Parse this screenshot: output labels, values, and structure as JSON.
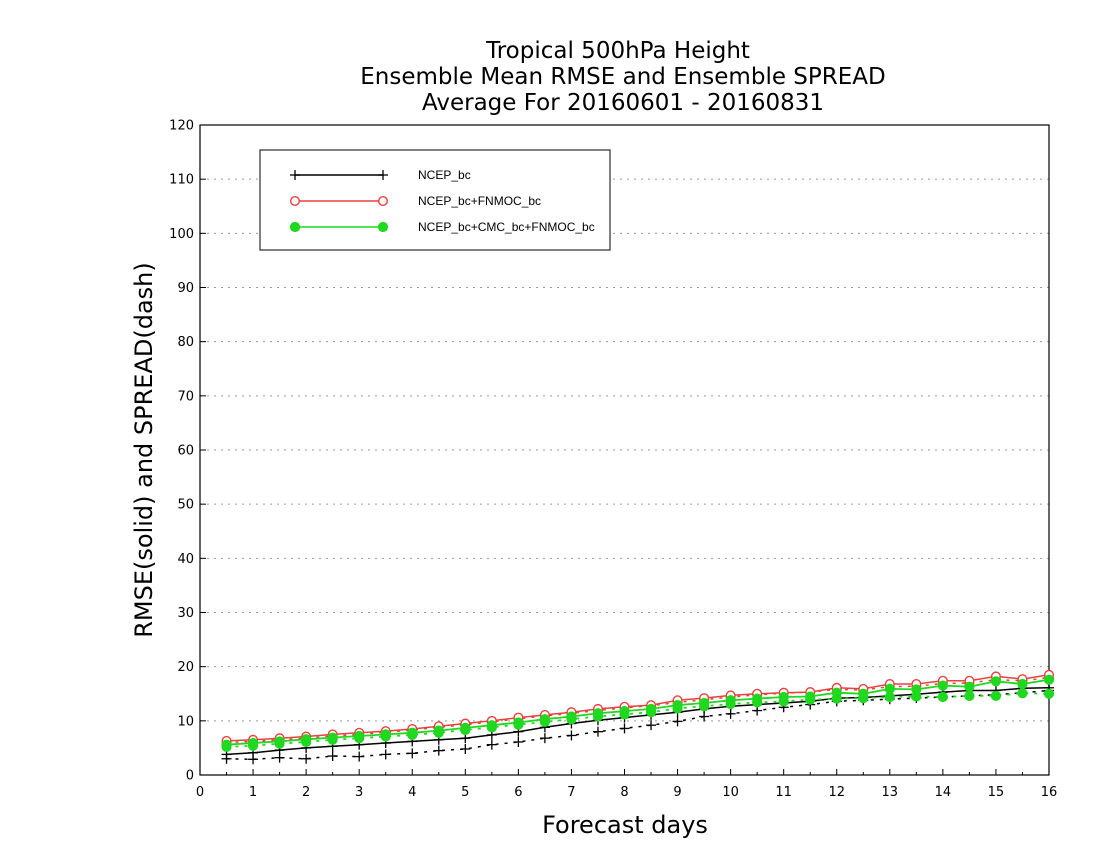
{
  "chart_data": {
    "type": "line",
    "title": [
      "Tropical 500hPa Height",
      "Ensemble Mean RMSE and Ensemble SPREAD",
      "Average For 20160601 - 20160831"
    ],
    "xlabel": "Forecast days",
    "ylabel": "RMSE(solid) and SPREAD(dash)",
    "xlim": [
      0,
      16
    ],
    "ylim": [
      0,
      120
    ],
    "xticks": [
      "0",
      "1",
      "2",
      "3",
      "4",
      "5",
      "6",
      "7",
      "8",
      "9",
      "10",
      "11",
      "12",
      "13",
      "14",
      "15",
      "16"
    ],
    "yticks": [
      "0",
      "10",
      "20",
      "30",
      "40",
      "50",
      "60",
      "70",
      "80",
      "90",
      "100",
      "110",
      "120"
    ],
    "grid": "horizontal dotted",
    "legend_position": "top-left",
    "x": [
      0.5,
      1,
      1.5,
      2,
      2.5,
      3,
      3.5,
      4,
      4.5,
      5,
      5.5,
      6,
      6.5,
      7,
      7.5,
      8,
      8.5,
      9,
      9.5,
      10,
      10.5,
      11,
      11.5,
      12,
      12.5,
      13,
      13.5,
      14,
      14.5,
      15,
      15.5,
      16
    ],
    "series": [
      {
        "name": "NCEP_bc",
        "color": "#000000",
        "marker": "plus",
        "rmse": [
          3.8,
          4.1,
          4.6,
          5.0,
          5.3,
          5.6,
          5.9,
          6.2,
          6.5,
          6.8,
          7.4,
          8.0,
          8.8,
          9.5,
          10.1,
          10.6,
          11.1,
          11.6,
          12.2,
          12.7,
          13.0,
          13.3,
          13.6,
          14.2,
          14.3,
          14.6,
          14.9,
          15.3,
          15.6,
          15.6,
          16.0,
          16.1
        ],
        "spread": [
          3.0,
          2.9,
          3.2,
          3.0,
          3.5,
          3.4,
          3.8,
          4.0,
          4.5,
          4.8,
          5.6,
          6.1,
          6.8,
          7.3,
          8.0,
          8.6,
          9.2,
          9.9,
          10.8,
          11.3,
          11.9,
          12.5,
          13.0,
          13.6,
          13.8,
          14.0,
          14.2,
          14.4,
          14.6,
          14.8,
          15.2,
          15.6
        ]
      },
      {
        "name": "NCEP_bc+FNMOC_bc",
        "color": "#e8413f",
        "marker": "open-circle",
        "rmse": [
          6.3,
          6.5,
          6.8,
          7.1,
          7.5,
          7.8,
          8.1,
          8.5,
          9.0,
          9.5,
          10.0,
          10.6,
          11.1,
          11.6,
          12.2,
          12.6,
          12.9,
          13.8,
          14.2,
          14.7,
          15.0,
          15.2,
          15.3,
          16.1,
          15.9,
          16.8,
          16.8,
          17.4,
          17.4,
          18.2,
          17.7,
          18.5
        ],
        "spread": [
          6.0,
          6.2,
          6.5,
          6.8,
          7.2,
          7.5,
          7.9,
          8.3,
          8.8,
          9.3,
          9.8,
          10.4,
          10.9,
          11.4,
          11.9,
          12.4,
          12.8,
          13.4,
          13.9,
          14.4,
          14.8,
          15.1,
          15.3,
          15.8,
          15.7,
          16.3,
          16.4,
          16.9,
          17.0,
          17.6,
          17.4,
          18.0
        ]
      },
      {
        "name": "NCEP_bc+CMC_bc+FNMOC_bc",
        "color": "#1fd81f",
        "marker": "filled-circle",
        "rmse": [
          5.6,
          5.9,
          6.2,
          6.6,
          6.9,
          7.2,
          7.5,
          7.8,
          8.2,
          8.7,
          9.2,
          9.7,
          10.3,
          10.8,
          11.4,
          11.8,
          12.2,
          12.9,
          13.3,
          13.8,
          14.1,
          14.4,
          14.5,
          15.2,
          15.0,
          15.9,
          15.8,
          16.5,
          16.3,
          17.3,
          16.8,
          17.6
        ],
        "spread": [
          5.2,
          5.4,
          5.8,
          6.1,
          6.5,
          6.8,
          7.1,
          7.4,
          7.8,
          8.3,
          8.8,
          9.3,
          9.8,
          10.3,
          10.8,
          11.2,
          11.6,
          12.3,
          12.7,
          13.1,
          13.4,
          13.6,
          13.9,
          14.1,
          14.2,
          14.4,
          14.5,
          14.4,
          14.6,
          14.6,
          15.1,
          15.0
        ]
      }
    ]
  }
}
